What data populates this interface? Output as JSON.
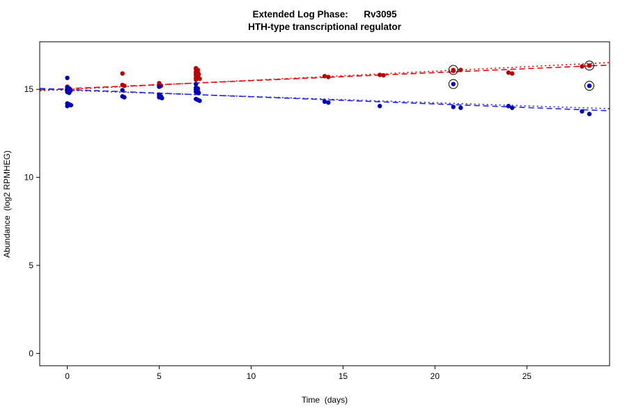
{
  "header": {
    "title": "Extended Log Phase:      Rv3095",
    "subtitle": "HTH-type transcriptional regulator"
  },
  "chart_data": {
    "type": "scatter",
    "title": "Extended Log Phase:      Rv3095",
    "subtitle": "HTH-type transcriptional regulator",
    "xlabel": "Time  (days)",
    "ylabel": "Abundance  (log2 RPMHEG)",
    "xlim": [
      -1.5,
      29.5
    ],
    "ylim": [
      -0.7,
      17.7
    ],
    "xticks": [
      0,
      5,
      10,
      15,
      20,
      25
    ],
    "yticks": [
      0,
      5,
      10,
      15
    ],
    "grid": false,
    "legend": "none",
    "colors": {
      "red_points": "#bb0000",
      "blue_points": "#0000bb",
      "red_line": "#ee0000",
      "blue_line": "#2222ee",
      "outlier_ring": "#000000",
      "axis": "#000000"
    },
    "series": [
      {
        "name": "red-condition",
        "color": "#bb0000",
        "points": [
          [
            0,
            15.15
          ],
          [
            0,
            15.1
          ],
          [
            0.1,
            15.05
          ],
          [
            0,
            15.0
          ],
          [
            0.15,
            15.0
          ],
          [
            0,
            14.95
          ],
          [
            0.1,
            14.9
          ],
          [
            0,
            14.85
          ],
          [
            0.2,
            14.95
          ],
          [
            3,
            15.9
          ],
          [
            3,
            15.25
          ],
          [
            3.1,
            15.2
          ],
          [
            5,
            15.35
          ],
          [
            5,
            15.25
          ],
          [
            5.1,
            15.2
          ],
          [
            5,
            15.15
          ],
          [
            7,
            16.2
          ],
          [
            7,
            16.15
          ],
          [
            7.1,
            16.1
          ],
          [
            7,
            16.0
          ],
          [
            7.1,
            15.95
          ],
          [
            7,
            15.9
          ],
          [
            7.15,
            15.85
          ],
          [
            7,
            15.8
          ],
          [
            7.1,
            15.75
          ],
          [
            7,
            15.65
          ],
          [
            7,
            15.55
          ],
          [
            7.2,
            15.6
          ],
          [
            14,
            15.75
          ],
          [
            14.2,
            15.7
          ],
          [
            17,
            15.82
          ],
          [
            17.2,
            15.8
          ],
          [
            21,
            16.05
          ],
          [
            21.4,
            16.1
          ],
          [
            24,
            15.95
          ],
          [
            24.2,
            15.9
          ],
          [
            28,
            16.3
          ],
          [
            28.4,
            16.35
          ]
        ]
      },
      {
        "name": "blue-condition",
        "color": "#0000bb",
        "points": [
          [
            0,
            15.65
          ],
          [
            0,
            15.1
          ],
          [
            0.1,
            15.05
          ],
          [
            0,
            15.0
          ],
          [
            0,
            14.95
          ],
          [
            0.15,
            14.9
          ],
          [
            0,
            14.85
          ],
          [
            0.1,
            14.8
          ],
          [
            0,
            14.2
          ],
          [
            0.1,
            14.15
          ],
          [
            0.2,
            14.1
          ],
          [
            0,
            14.05
          ],
          [
            3,
            14.95
          ],
          [
            3,
            14.6
          ],
          [
            3.1,
            14.55
          ],
          [
            5,
            15.15
          ],
          [
            5,
            14.7
          ],
          [
            5,
            14.65
          ],
          [
            5.1,
            14.6
          ],
          [
            5,
            14.55
          ],
          [
            5.15,
            14.5
          ],
          [
            7,
            15.3
          ],
          [
            7,
            15.1
          ],
          [
            7.1,
            15.05
          ],
          [
            7,
            15.0
          ],
          [
            7,
            14.95
          ],
          [
            7.1,
            14.9
          ],
          [
            7,
            14.85
          ],
          [
            7.15,
            14.8
          ],
          [
            7,
            14.45
          ],
          [
            7.1,
            14.4
          ],
          [
            7.2,
            14.35
          ],
          [
            14,
            14.3
          ],
          [
            14.2,
            14.25
          ],
          [
            17,
            14.05
          ],
          [
            21,
            14.0
          ],
          [
            21.4,
            13.95
          ],
          [
            24,
            14.05
          ],
          [
            24.2,
            13.95
          ],
          [
            28,
            13.75
          ],
          [
            28.4,
            13.6
          ]
        ]
      }
    ],
    "outlier_points": [
      {
        "series": "red-condition",
        "color": "#bb0000",
        "x": 21,
        "y": 16.1
      },
      {
        "series": "red-condition",
        "color": "#bb0000",
        "x": 28.4,
        "y": 16.35
      },
      {
        "series": "blue-condition",
        "color": "#0000bb",
        "x": 21,
        "y": 15.3
      },
      {
        "series": "blue-condition",
        "color": "#0000bb",
        "x": 28.4,
        "y": 15.2
      }
    ],
    "trendlines": [
      {
        "name": "red-dotted",
        "color": "#ee0000",
        "dash": "2,4",
        "x1": -1.5,
        "y1": 14.92,
        "x2": 29.5,
        "y2": 16.52
      },
      {
        "name": "red-dashed",
        "color": "#ee0000",
        "dash": "8,5",
        "x1": -1.5,
        "y1": 14.97,
        "x2": 29.5,
        "y2": 16.38
      },
      {
        "name": "blue-dotted",
        "color": "#2222ee",
        "dash": "2,4",
        "x1": -1.5,
        "y1": 15.0,
        "x2": 29.5,
        "y2": 13.9
      },
      {
        "name": "blue-dashed",
        "color": "#2222ee",
        "dash": "8,5",
        "x1": -1.5,
        "y1": 15.05,
        "x2": 29.5,
        "y2": 13.78
      }
    ]
  }
}
